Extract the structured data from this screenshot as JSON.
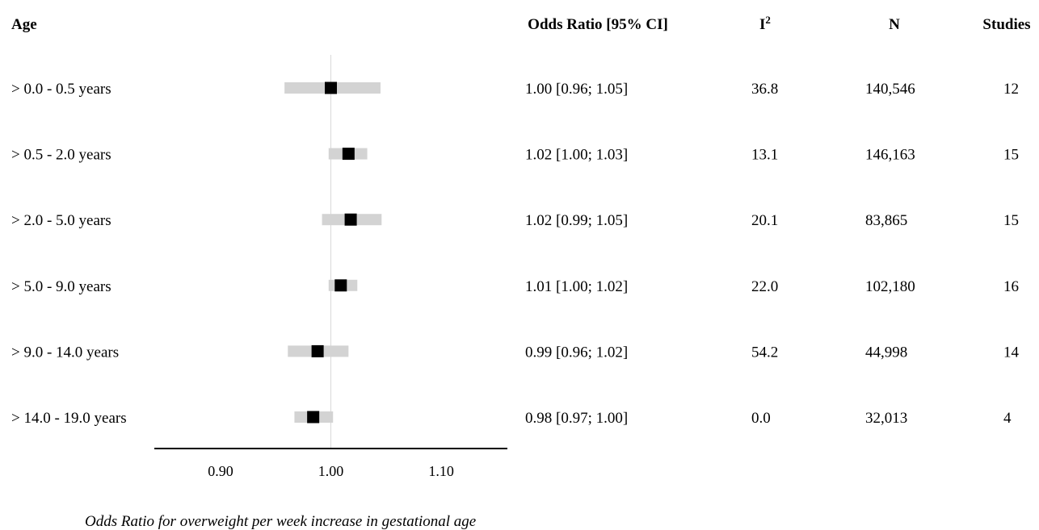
{
  "headers": {
    "age": "Age",
    "or_ci": "Odds Ratio [95% CI]",
    "i2_base": "I",
    "i2_sup": "2",
    "n": "N",
    "studies": "Studies"
  },
  "rows": [
    {
      "age": "> 0.0 - 0.5 years",
      "or_ci": "1.00 [0.96; 1.05]",
      "i2": "36.8",
      "n": "140,546",
      "studies": "12"
    },
    {
      "age": "> 0.5 - 2.0 years",
      "or_ci": "1.02 [1.00; 1.03]",
      "i2": "13.1",
      "n": "146,163",
      "studies": "15"
    },
    {
      "age": "> 2.0 - 5.0 years",
      "or_ci": "1.02 [0.99; 1.05]",
      "i2": "20.1",
      "n": "83,865",
      "studies": "15"
    },
    {
      "age": "> 5.0 - 9.0 years",
      "or_ci": "1.01 [1.00; 1.02]",
      "i2": "22.0",
      "n": "102,180",
      "studies": "16"
    },
    {
      "age": "> 9.0 - 14.0 years",
      "or_ci": "0.99 [0.96; 1.02]",
      "i2": "54.2",
      "n": "44,998",
      "studies": "14"
    },
    {
      "age": "> 14.0 - 19.0 years",
      "or_ci": "0.98 [0.97; 1.00]",
      "i2": "0.0",
      "n": "32,013",
      "studies": "4"
    }
  ],
  "chart_data": {
    "type": "forest",
    "categories": [
      "> 0.0 - 0.5 years",
      "> 0.5 - 2.0 years",
      "> 2.0 - 5.0 years",
      "> 5.0 - 9.0 years",
      "> 9.0 - 14.0 years",
      "> 14.0 - 19.0 years"
    ],
    "estimate": [
      1.0,
      1.016,
      1.018,
      1.009,
      0.988,
      0.984
    ],
    "ci_lower": [
      0.958,
      0.998,
      0.992,
      0.998,
      0.961,
      0.967
    ],
    "ci_upper": [
      1.045,
      1.033,
      1.046,
      1.024,
      1.016,
      1.002
    ],
    "reference_line": 1.0,
    "xlim": [
      0.84,
      1.16
    ],
    "xticks": [
      0.9,
      1.0,
      1.1
    ],
    "xtick_labels": [
      "0.90",
      "1.00",
      "1.10"
    ],
    "xlabel": "Odds Ratio for overweight per week increase in gestational age",
    "colors": {
      "ci_bar": "#d3d3d3",
      "marker": "#000000",
      "ref_line": "#d9d9d9",
      "axis": "#000000"
    }
  }
}
